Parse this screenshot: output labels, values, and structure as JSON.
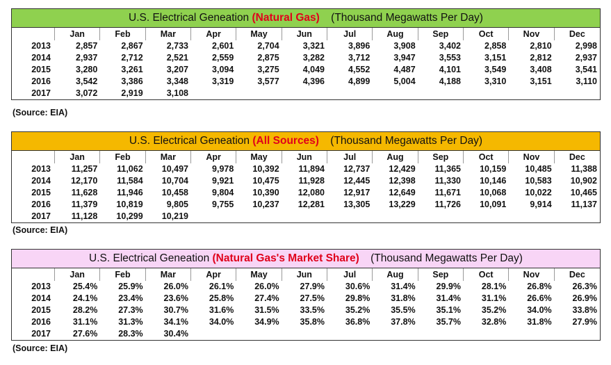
{
  "months": [
    "Jan",
    "Feb",
    "Mar",
    "Apr",
    "May",
    "Jun",
    "Jul",
    "Aug",
    "Sep",
    "Oct",
    "Nov",
    "Dec"
  ],
  "tables": [
    {
      "title_prefix": "U.S. Electrical Geneation",
      "title_highlight": "(Natural Gas)",
      "title_unit": "(Thousand Megawatts Per Day)",
      "color": "#8fd14f",
      "rows": [
        {
          "year": "2013",
          "values": [
            "2,857",
            "2,867",
            "2,733",
            "2,601",
            "2,704",
            "3,321",
            "3,896",
            "3,908",
            "3,402",
            "2,858",
            "2,810",
            "2,998"
          ]
        },
        {
          "year": "2014",
          "values": [
            "2,937",
            "2,712",
            "2,521",
            "2,559",
            "2,875",
            "3,282",
            "3,712",
            "3,947",
            "3,553",
            "3,151",
            "2,812",
            "2,937"
          ]
        },
        {
          "year": "2015",
          "values": [
            "3,280",
            "3,261",
            "3,207",
            "3,094",
            "3,275",
            "4,049",
            "4,552",
            "4,487",
            "4,101",
            "3,549",
            "3,408",
            "3,541"
          ]
        },
        {
          "year": "2016",
          "values": [
            "3,542",
            "3,386",
            "3,348",
            "3,319",
            "3,577",
            "4,396",
            "4,899",
            "5,004",
            "4,188",
            "3,310",
            "3,151",
            "3,110"
          ]
        },
        {
          "year": "2017",
          "values": [
            "3,072",
            "2,919",
            "3,108",
            "",
            "",
            "",
            "",
            "",
            "",
            "",
            "",
            ""
          ]
        }
      ],
      "source": "(Source: EIA)"
    },
    {
      "title_prefix": "U.S. Electrical Geneation",
      "title_highlight": "(All Sources)",
      "title_unit": "(Thousand Megawatts Per Day)",
      "color": "#f5b800",
      "rows": [
        {
          "year": "2013",
          "values": [
            "11,257",
            "11,062",
            "10,497",
            "9,978",
            "10,392",
            "11,894",
            "12,737",
            "12,429",
            "11,365",
            "10,159",
            "10,485",
            "11,388"
          ]
        },
        {
          "year": "2014",
          "values": [
            "12,170",
            "11,584",
            "10,704",
            "9,921",
            "10,475",
            "11,928",
            "12,445",
            "12,398",
            "11,330",
            "10,146",
            "10,583",
            "10,902"
          ]
        },
        {
          "year": "2015",
          "values": [
            "11,628",
            "11,946",
            "10,458",
            "9,804",
            "10,390",
            "12,080",
            "12,917",
            "12,649",
            "11,671",
            "10,068",
            "10,022",
            "10,465"
          ]
        },
        {
          "year": "2016",
          "values": [
            "11,379",
            "10,819",
            "9,805",
            "9,755",
            "10,237",
            "12,281",
            "13,305",
            "13,229",
            "11,726",
            "10,091",
            "9,914",
            "11,137"
          ]
        },
        {
          "year": "2017",
          "values": [
            "11,128",
            "10,299",
            "10,219",
            "",
            "",
            "",
            "",
            "",
            "",
            "",
            "",
            ""
          ]
        }
      ],
      "source": "(Source: EIA)"
    },
    {
      "title_prefix": "U.S. Electrical Geneation",
      "title_highlight": "(Natural Gas's Market Share)",
      "title_unit": "(Thousand Megawatts Per Day)",
      "color": "#f8d5f6",
      "rows": [
        {
          "year": "2013",
          "values": [
            "25.4%",
            "25.9%",
            "26.0%",
            "26.1%",
            "26.0%",
            "27.9%",
            "30.6%",
            "31.4%",
            "29.9%",
            "28.1%",
            "26.8%",
            "26.3%"
          ]
        },
        {
          "year": "2014",
          "values": [
            "24.1%",
            "23.4%",
            "23.6%",
            "25.8%",
            "27.4%",
            "27.5%",
            "29.8%",
            "31.8%",
            "31.4%",
            "31.1%",
            "26.6%",
            "26.9%"
          ]
        },
        {
          "year": "2015",
          "values": [
            "28.2%",
            "27.3%",
            "30.7%",
            "31.6%",
            "31.5%",
            "33.5%",
            "35.2%",
            "35.5%",
            "35.1%",
            "35.2%",
            "34.0%",
            "33.8%"
          ]
        },
        {
          "year": "2016",
          "values": [
            "31.1%",
            "31.3%",
            "34.1%",
            "34.0%",
            "34.9%",
            "35.8%",
            "36.8%",
            "37.8%",
            "35.7%",
            "32.8%",
            "31.8%",
            "27.9%"
          ]
        },
        {
          "year": "2017",
          "values": [
            "27.6%",
            "28.3%",
            "30.4%",
            "",
            "",
            "",
            "",
            "",
            "",
            "",
            "",
            ""
          ]
        }
      ],
      "source": "(Source: EIA)"
    }
  ]
}
